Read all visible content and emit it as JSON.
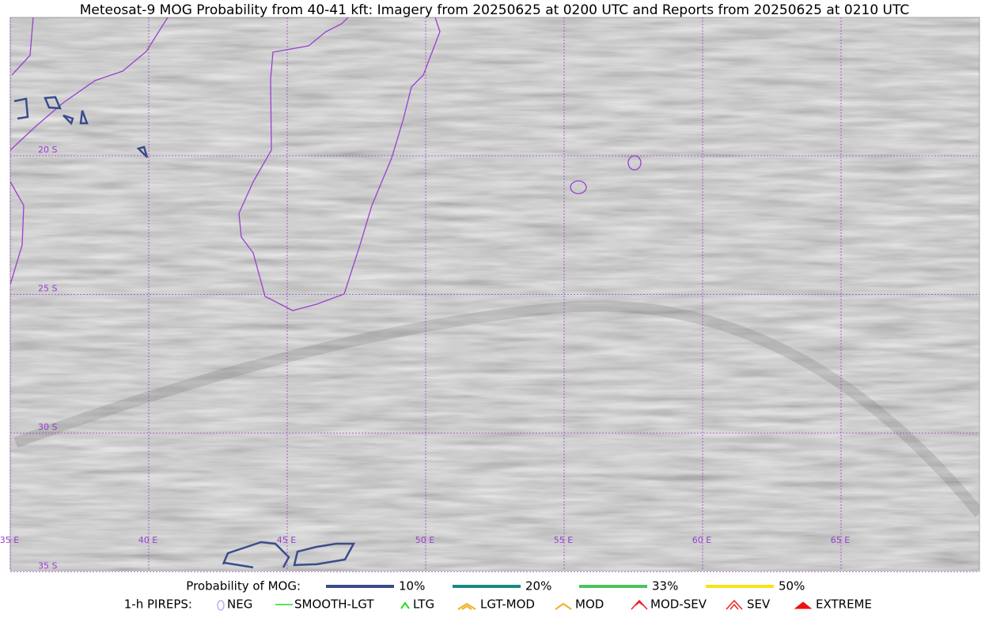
{
  "title": "Meteosat-9 MOG Probability from 40-41 kft: Imagery from 20250625 at 0200 UTC and Reports from 20250625 at 0210 UTC",
  "map": {
    "lat_labels": [
      "20 S",
      "25 S",
      "30 S",
      "35 S"
    ],
    "lon_labels": [
      "35 E",
      "40 E",
      "45 E",
      "50 E",
      "55 E",
      "60 E",
      "65 E"
    ]
  },
  "legend": {
    "probability_label": "Probability of MOG:",
    "probability_items": [
      {
        "label": "10%",
        "color": "#3a4c8c"
      },
      {
        "label": "20%",
        "color": "#1c8a80"
      },
      {
        "label": "33%",
        "color": "#4cc35a"
      },
      {
        "label": "50%",
        "color": "#f7e21c"
      }
    ],
    "pirep_label": "1-h PIREPS:",
    "pirep_items": [
      {
        "label": "NEG",
        "color": "#b4b4f0"
      },
      {
        "label": "SMOOTH-LGT",
        "color": "#22dd22"
      },
      {
        "label": "LTG",
        "color": "#22dd22"
      },
      {
        "label": "LGT-MOD",
        "color": "#f0b020"
      },
      {
        "label": "MOD",
        "color": "#f0b020"
      },
      {
        "label": "MOD-SEV",
        "color": "#ee2222"
      },
      {
        "label": "SEV",
        "color": "#ee2222"
      },
      {
        "label": "EXTREME",
        "color": "#ee1111"
      }
    ]
  }
}
